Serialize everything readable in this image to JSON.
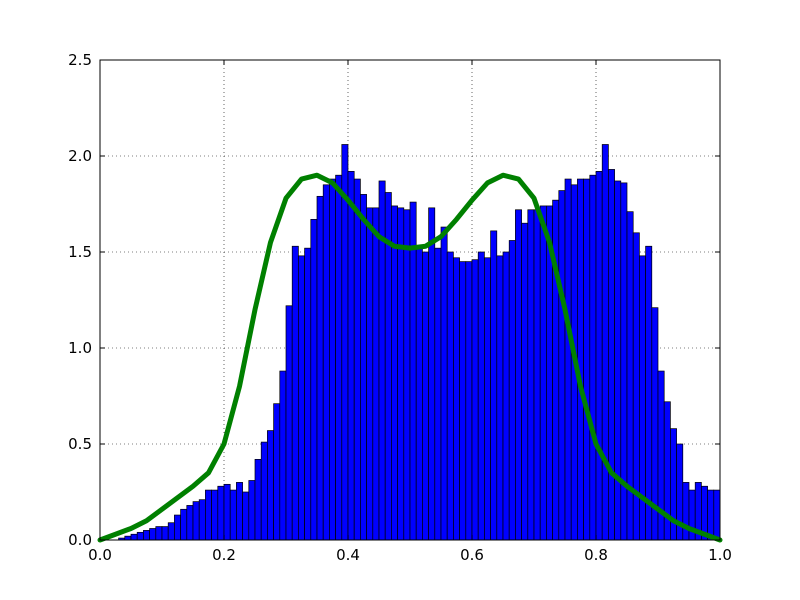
{
  "chart_data": {
    "type": "bar",
    "title": "",
    "xlabel": "",
    "ylabel": "",
    "xlim": [
      0.0,
      1.0
    ],
    "ylim": [
      0.0,
      2.5
    ],
    "grid": true,
    "x_ticks": [
      0.0,
      0.2,
      0.4,
      0.6,
      0.8,
      1.0
    ],
    "x_tick_labels": [
      "0.0",
      "0.2",
      "0.4",
      "0.6",
      "0.8",
      "1.0"
    ],
    "y_ticks": [
      0.0,
      0.5,
      1.0,
      1.5,
      2.0,
      2.5
    ],
    "y_tick_labels": [
      "0.0",
      "0.5",
      "1.0",
      "1.5",
      "2.0",
      "2.5"
    ],
    "histogram": {
      "bin_width": 0.01,
      "bin_start": 0.0,
      "color": "#0000ff",
      "edgecolor": "#000000",
      "values": [
        0.0,
        0.0,
        0.0,
        0.01,
        0.02,
        0.03,
        0.04,
        0.05,
        0.06,
        0.07,
        0.07,
        0.09,
        0.13,
        0.16,
        0.18,
        0.2,
        0.21,
        0.26,
        0.26,
        0.28,
        0.29,
        0.26,
        0.3,
        0.25,
        0.31,
        0.42,
        0.51,
        0.57,
        0.71,
        0.88,
        1.22,
        1.53,
        1.48,
        1.52,
        1.67,
        1.79,
        1.85,
        1.88,
        1.9,
        2.06,
        1.92,
        1.88,
        1.8,
        1.73,
        1.73,
        1.87,
        1.81,
        1.74,
        1.73,
        1.72,
        1.76,
        1.53,
        1.5,
        1.73,
        1.52,
        1.63,
        1.5,
        1.47,
        1.45,
        1.45,
        1.46,
        1.5,
        1.47,
        1.61,
        1.48,
        1.5,
        1.56,
        1.72,
        1.65,
        1.72,
        1.72,
        1.74,
        1.74,
        1.77,
        1.82,
        1.88,
        1.85,
        1.88,
        1.88,
        1.9,
        1.92,
        2.06,
        1.93,
        1.87,
        1.86,
        1.71,
        1.6,
        1.48,
        1.53,
        1.21,
        0.88,
        0.72,
        0.58,
        0.5,
        0.3,
        0.26,
        0.3,
        0.28,
        0.26,
        0.26
      ]
    },
    "series": [
      {
        "type": "line",
        "color": "#008000",
        "x": [
          0.0,
          0.025,
          0.05,
          0.075,
          0.1,
          0.125,
          0.15,
          0.175,
          0.2,
          0.225,
          0.25,
          0.275,
          0.3,
          0.325,
          0.35,
          0.375,
          0.4,
          0.425,
          0.45,
          0.475,
          0.5,
          0.525,
          0.55,
          0.575,
          0.6,
          0.625,
          0.65,
          0.675,
          0.7,
          0.725,
          0.75,
          0.775,
          0.8,
          0.825,
          0.85,
          0.875,
          0.9,
          0.925,
          0.95,
          0.975,
          1.0
        ],
        "y": [
          0.0,
          0.03,
          0.06,
          0.1,
          0.16,
          0.22,
          0.28,
          0.35,
          0.5,
          0.8,
          1.2,
          1.55,
          1.78,
          1.88,
          1.9,
          1.86,
          1.77,
          1.67,
          1.58,
          1.53,
          1.52,
          1.53,
          1.58,
          1.67,
          1.77,
          1.86,
          1.9,
          1.88,
          1.78,
          1.55,
          1.2,
          0.8,
          0.5,
          0.35,
          0.28,
          0.22,
          0.16,
          0.1,
          0.06,
          0.03,
          0.0
        ]
      }
    ]
  }
}
